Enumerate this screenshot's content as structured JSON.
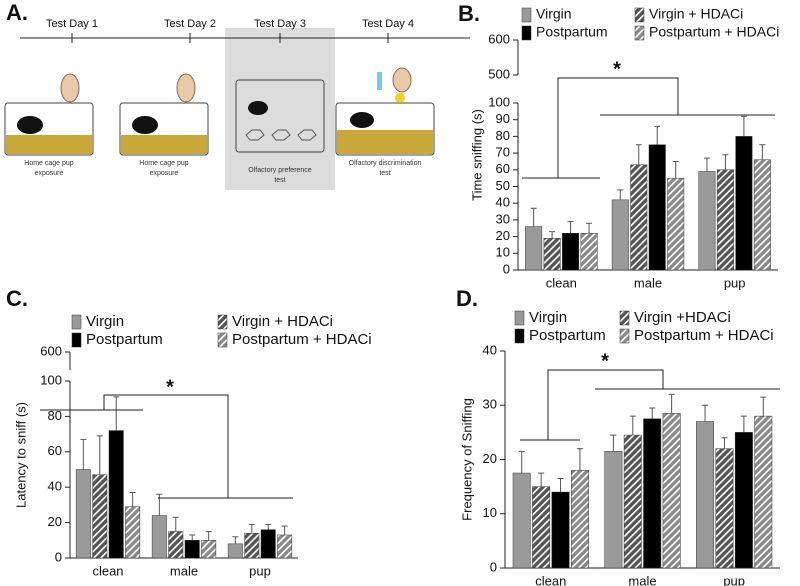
{
  "timeline": {
    "panel": "A.",
    "days": [
      {
        "label": "Test Day 1",
        "caption": [
          "Home cage pup",
          "exposure"
        ]
      },
      {
        "label": "Test Day 2",
        "caption": [
          "Home cage pup",
          "exposure"
        ]
      },
      {
        "label": "Test Day 3",
        "caption": [
          "Olfactory preference",
          "test"
        ]
      },
      {
        "label": "Test Day 4",
        "caption": [
          "Olfactory discrimination",
          "test"
        ]
      }
    ]
  },
  "chart_data": [
    {
      "type": "bar",
      "panel": "B.",
      "y_label": "Time sniffing (s)",
      "categories": [
        "clean",
        "male",
        "pup"
      ],
      "ylim": [
        0,
        100
      ],
      "yticks": [
        0,
        10,
        20,
        30,
        40,
        50,
        60,
        70,
        80,
        90,
        100
      ],
      "upper_ylim": [
        500,
        600
      ],
      "upper_yticks": [
        500,
        600
      ],
      "annotation": "*",
      "series": [
        {
          "name": "Virgin",
          "color": "#9a9a9a",
          "hatch": false,
          "values": [
            26,
            42,
            59
          ],
          "errors": [
            11,
            6,
            8
          ]
        },
        {
          "name": "Virgin + HDACi",
          "color": "#555555",
          "hatch": true,
          "values": [
            19,
            63,
            60
          ],
          "errors": [
            4,
            12,
            9
          ]
        },
        {
          "name": "Postpartum",
          "color": "#000000",
          "hatch": false,
          "values": [
            22,
            75,
            80
          ],
          "errors": [
            7,
            11,
            12
          ]
        },
        {
          "name": "Postpartum + HDACi",
          "color": "#8a8a8a",
          "hatch": true,
          "values": [
            22,
            55,
            66
          ],
          "errors": [
            6,
            10,
            9
          ]
        }
      ]
    },
    {
      "type": "bar",
      "panel": "C.",
      "y_label": "Latency to sniff (s)",
      "categories": [
        "clean",
        "male",
        "pup"
      ],
      "ylim": [
        0,
        100
      ],
      "yticks": [
        0,
        20,
        40,
        60,
        80,
        100
      ],
      "upper_ylim": [
        500,
        600
      ],
      "upper_yticks": [
        600
      ],
      "annotation": "*",
      "series": [
        {
          "name": "Virgin",
          "color": "#9a9a9a",
          "hatch": false,
          "values": [
            50,
            24,
            8
          ],
          "errors": [
            17,
            12,
            4
          ]
        },
        {
          "name": "Virgin + HDACi",
          "color": "#555555",
          "hatch": true,
          "values": [
            47,
            15,
            14
          ],
          "errors": [
            22,
            8,
            5
          ]
        },
        {
          "name": "Postpartum",
          "color": "#000000",
          "hatch": false,
          "values": [
            72,
            10,
            16
          ],
          "errors": [
            19,
            3,
            3
          ]
        },
        {
          "name": "Postpartum + HDACi",
          "color": "#8a8a8a",
          "hatch": true,
          "values": [
            29,
            10,
            13
          ],
          "errors": [
            8,
            5,
            5
          ]
        }
      ]
    },
    {
      "type": "bar",
      "panel": "D.",
      "y_label": "Frequency of Sniffing",
      "categories": [
        "clean",
        "male",
        "pup"
      ],
      "ylim": [
        0,
        40
      ],
      "yticks": [
        0,
        10,
        20,
        30,
        40
      ],
      "annotation": "*",
      "series": [
        {
          "name": "Virgin",
          "color": "#9a9a9a",
          "hatch": false,
          "values": [
            17.5,
            21.5,
            27
          ],
          "errors": [
            4,
            3,
            3
          ]
        },
        {
          "name": "Virgin +HDACi",
          "color": "#555555",
          "hatch": true,
          "values": [
            15,
            24.5,
            22
          ],
          "errors": [
            2.5,
            3.5,
            2
          ]
        },
        {
          "name": "Postpartum",
          "color": "#000000",
          "hatch": false,
          "values": [
            14,
            27.5,
            25
          ],
          "errors": [
            2.5,
            2,
            3
          ]
        },
        {
          "name": "Postpartum + HDACi",
          "color": "#8a8a8a",
          "hatch": true,
          "values": [
            18,
            28.5,
            28
          ],
          "errors": [
            4,
            3.5,
            3.5
          ]
        }
      ]
    }
  ]
}
